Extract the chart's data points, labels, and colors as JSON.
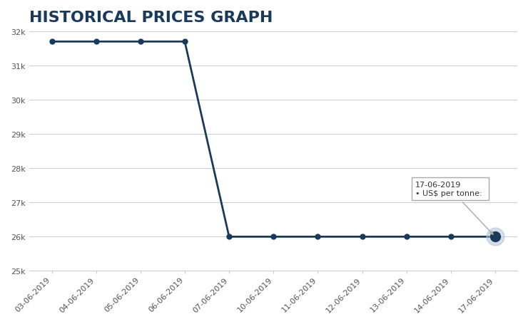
{
  "title": "HISTORICAL PRICES GRAPH",
  "title_fontsize": 16,
  "title_color": "#1a3a5c",
  "title_fontweight": "bold",
  "background_color": "#ffffff",
  "plot_bg_color": "#ffffff",
  "line_color": "#1a3a5c",
  "line_width": 2.0,
  "marker_size": 5,
  "dates": [
    "03-06-2019",
    "04-06-2019",
    "05-06-2019",
    "06-06-2019",
    "07-06-2019",
    "10-06-2019",
    "11-06-2019",
    "12-06-2019",
    "13-06-2019",
    "14-06-2019",
    "17-06-2019"
  ],
  "values": [
    31700,
    31700,
    31700,
    31700,
    26000,
    26000,
    26000,
    26000,
    26000,
    26000,
    26000
  ],
  "ylim": [
    25000,
    32000
  ],
  "yticks": [
    25000,
    26000,
    27000,
    28000,
    29000,
    30000,
    31000,
    32000
  ],
  "ytick_labels": [
    "25k",
    "26k",
    "27k",
    "28k",
    "29k",
    "30k",
    "31k",
    "32k"
  ],
  "grid_color": "#cccccc",
  "grid_linewidth": 0.7,
  "tick_color": "#555555",
  "tick_fontsize": 8,
  "tooltip_date": "17-06-2019",
  "tooltip_label": "US$ per tonne: ",
  "highlighted_idx": 10,
  "highlighted_marker_size": 10,
  "highlighted_marker_color": "#1a3a5c",
  "highlighted_halo_color": "#b0c4d8",
  "highlighted_halo_size": 18
}
